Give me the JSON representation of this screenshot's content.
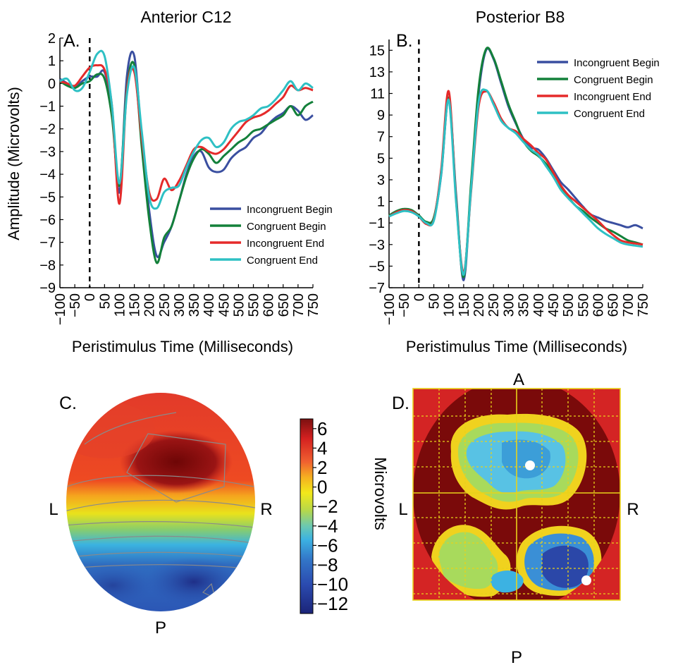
{
  "panels": {
    "A": {
      "letter": "A.",
      "title": "Anterior C12"
    },
    "B": {
      "letter": "B.",
      "title": "Posterior B8"
    },
    "C": {
      "letter": "C.",
      "labels": {
        "A": "A",
        "L": "L",
        "R": "R",
        "P": "P"
      }
    },
    "D": {
      "letter": "D.",
      "labels": {
        "A": "A",
        "L": "L",
        "R": "R",
        "P": "P"
      }
    }
  },
  "colorbar": {
    "label": "Microvolts",
    "ticks": [
      "6",
      "4",
      "2",
      "0",
      "−2",
      "−4",
      "−6",
      "−8",
      "−10",
      "−12"
    ],
    "min": -13,
    "max": 7
  },
  "colors": {
    "incongruent_begin": "#3A4FA0",
    "congruent_begin": "#13803A",
    "incongruent_end": "#E52A2A",
    "congruent_end": "#2EC0C4",
    "dark_red": "#7A0A0A",
    "grid_yellow": "#E8D21A"
  },
  "chart_data": [
    {
      "type": "line",
      "title": "Anterior C12",
      "xlabel": "Peristimulus Time (Milliseconds)",
      "ylabel": "Amplitude (Microvolts)",
      "xlim": [
        -100,
        750
      ],
      "ylim": [
        -9,
        2
      ],
      "xticks": [
        "−100",
        "−50",
        "0",
        "50",
        "100",
        "150",
        "200",
        "250",
        "300",
        "350",
        "400",
        "450",
        "500",
        "550",
        "600",
        "650",
        "700",
        "750"
      ],
      "yticks": [
        "2",
        "1",
        "0",
        "−1",
        "−2",
        "−3",
        "−4",
        "−5",
        "−6",
        "−7",
        "−8",
        "−9"
      ],
      "ytick_values": [
        2,
        1,
        0,
        -1,
        -2,
        -3,
        -4,
        -5,
        -6,
        -7,
        -8,
        -9
      ],
      "legend_position": "lower-right",
      "marker_x": 0,
      "x": [
        -100,
        -75,
        -50,
        -25,
        0,
        25,
        50,
        75,
        100,
        125,
        150,
        175,
        200,
        225,
        250,
        275,
        300,
        325,
        350,
        375,
        400,
        425,
        450,
        475,
        500,
        525,
        550,
        575,
        600,
        625,
        650,
        675,
        700,
        725,
        750
      ],
      "series": [
        {
          "name": "Incongruent Begin",
          "color_key": "incongruent_begin",
          "values": [
            0.2,
            0.0,
            -0.2,
            0.1,
            0.3,
            0.3,
            0.5,
            -1.2,
            -4.8,
            0.3,
            1.2,
            -2.5,
            -5.6,
            -7.6,
            -7.0,
            -6.3,
            -5.2,
            -4.0,
            -3.2,
            -3.0,
            -3.7,
            -3.9,
            -3.8,
            -3.3,
            -3.0,
            -2.8,
            -2.4,
            -2.2,
            -1.8,
            -1.5,
            -1.3,
            -1.0,
            -1.2,
            -1.6,
            -1.4
          ]
        },
        {
          "name": "Congruent Begin",
          "color_key": "congruent_begin",
          "values": [
            0.1,
            -0.1,
            -0.2,
            0.0,
            0.1,
            0.4,
            0.2,
            -1.5,
            -4.5,
            -0.2,
            0.8,
            -2.8,
            -6.0,
            -7.9,
            -6.8,
            -6.3,
            -5.2,
            -4.1,
            -3.3,
            -2.9,
            -3.1,
            -3.5,
            -3.2,
            -2.9,
            -2.6,
            -2.4,
            -2.1,
            -2.0,
            -1.8,
            -1.6,
            -1.4,
            -1.0,
            -1.4,
            -1.0,
            -0.8
          ]
        },
        {
          "name": "Incongruent End",
          "color_key": "incongruent_end",
          "values": [
            0.1,
            0.0,
            -0.1,
            0.3,
            0.7,
            0.8,
            0.6,
            -1.0,
            -5.3,
            -0.3,
            0.5,
            -2.4,
            -4.8,
            -5.1,
            -4.2,
            -4.7,
            -4.3,
            -3.6,
            -2.9,
            -2.8,
            -3.0,
            -3.1,
            -2.9,
            -2.5,
            -2.1,
            -1.7,
            -1.5,
            -1.4,
            -1.2,
            -0.9,
            -0.6,
            -0.1,
            -0.3,
            -0.2,
            -0.3
          ]
        },
        {
          "name": "Congruent End",
          "color_key": "congruent_end",
          "values": [
            0.1,
            0.2,
            -0.3,
            -0.2,
            0.5,
            1.3,
            1.2,
            -1.0,
            -4.4,
            -0.5,
            0.7,
            -2.1,
            -5.0,
            -5.5,
            -4.8,
            -4.6,
            -4.5,
            -3.7,
            -3.0,
            -2.5,
            -2.4,
            -2.8,
            -2.6,
            -2.0,
            -1.7,
            -1.6,
            -1.4,
            -1.1,
            -1.0,
            -0.7,
            -0.3,
            0.1,
            -0.3,
            0.0,
            -0.2
          ]
        }
      ]
    },
    {
      "type": "line",
      "title": "Posterior B8",
      "xlabel": "Peristimulus Time (Milliseconds)",
      "ylabel": "",
      "xlim": [
        -100,
        750
      ],
      "ylim": [
        -7,
        16
      ],
      "xticks": [
        "−100",
        "−50",
        "0",
        "50",
        "100",
        "150",
        "200",
        "250",
        "300",
        "350",
        "400",
        "450",
        "500",
        "550",
        "600",
        "650",
        "700",
        "750"
      ],
      "yticks": [
        "15",
        "13",
        "11",
        "9",
        "7",
        "5",
        "3",
        "1",
        "−1",
        "−3",
        "−5",
        "−7"
      ],
      "ytick_values": [
        15,
        13,
        11,
        9,
        7,
        5,
        3,
        1,
        -1,
        -3,
        -5,
        -7
      ],
      "legend_position": "top-right",
      "marker_x": 0,
      "x": [
        -100,
        -75,
        -50,
        -25,
        0,
        25,
        50,
        75,
        100,
        125,
        150,
        175,
        200,
        225,
        250,
        275,
        300,
        325,
        350,
        375,
        400,
        425,
        450,
        475,
        500,
        525,
        550,
        575,
        600,
        625,
        650,
        675,
        700,
        725,
        750
      ],
      "series": [
        {
          "name": "Incongruent Begin",
          "color_key": "incongruent_begin",
          "values": [
            -0.3,
            0.0,
            0.2,
            0.1,
            -0.3,
            -1.0,
            -0.6,
            3.5,
            10.5,
            1.5,
            -6.3,
            2.5,
            11.0,
            15.0,
            14.2,
            12.0,
            9.8,
            8.2,
            6.8,
            6.0,
            5.8,
            5.0,
            3.9,
            2.8,
            2.1,
            1.3,
            0.5,
            -0.2,
            -0.5,
            -0.8,
            -1.0,
            -1.2,
            -1.4,
            -1.2,
            -1.5
          ]
        },
        {
          "name": "Congruent Begin",
          "color_key": "congruent_begin",
          "values": [
            -0.3,
            0.1,
            0.3,
            0.2,
            -0.3,
            -0.9,
            -0.5,
            3.7,
            10.6,
            1.2,
            -6.0,
            2.8,
            11.5,
            15.1,
            14.3,
            12.2,
            10.0,
            8.3,
            6.6,
            5.7,
            5.2,
            4.5,
            3.5,
            2.3,
            1.4,
            0.6,
            0.1,
            -0.5,
            -1.0,
            -1.5,
            -1.8,
            -2.2,
            -2.6,
            -2.8,
            -3.0
          ]
        },
        {
          "name": "Incongruent End",
          "color_key": "incongruent_end",
          "values": [
            -0.4,
            0.0,
            0.2,
            0.1,
            -0.4,
            -1.1,
            -0.7,
            4.0,
            11.2,
            1.0,
            -5.6,
            2.0,
            9.8,
            11.2,
            10.2,
            8.7,
            7.8,
            7.5,
            6.8,
            6.2,
            5.5,
            4.9,
            3.7,
            2.5,
            1.6,
            1.0,
            0.4,
            -0.2,
            -0.8,
            -1.5,
            -2.1,
            -2.6,
            -2.8,
            -2.9,
            -3.0
          ]
        },
        {
          "name": "Congruent End",
          "color_key": "congruent_end",
          "values": [
            -0.4,
            -0.1,
            0.1,
            0.0,
            -0.4,
            -1.0,
            -0.8,
            3.6,
            10.4,
            0.8,
            -5.8,
            2.2,
            10.2,
            11.3,
            10.0,
            8.5,
            7.8,
            7.3,
            6.5,
            5.8,
            5.3,
            4.3,
            3.3,
            2.1,
            1.3,
            0.6,
            -0.1,
            -0.8,
            -1.5,
            -2.0,
            -2.4,
            -2.8,
            -3.0,
            -3.1,
            -3.2
          ]
        }
      ]
    }
  ]
}
